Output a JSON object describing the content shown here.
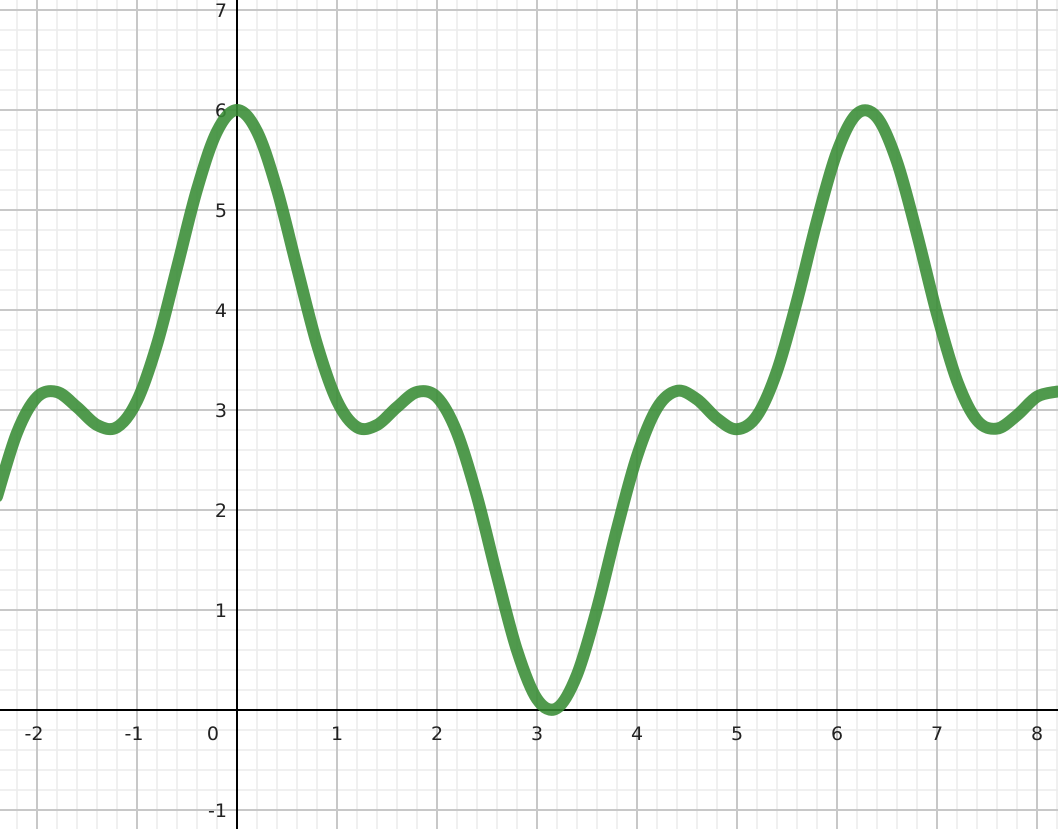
{
  "chart_data": {
    "type": "line",
    "title": "",
    "xlabel": "",
    "ylabel": "",
    "xlim": [
      -2.37,
      8.21
    ],
    "ylim": [
      -1.19,
      7.1
    ],
    "grid": true,
    "minor_grid_step": 0.2,
    "major_grid_step": 1,
    "x_ticks": [
      "-2",
      "-1",
      "0",
      "1",
      "2",
      "3",
      "4",
      "5",
      "6",
      "7",
      "8"
    ],
    "x_tick_values": [
      -2,
      -1,
      0,
      1,
      2,
      3,
      4,
      5,
      6,
      7,
      8
    ],
    "y_ticks": [
      "-1",
      "1",
      "2",
      "3",
      "4",
      "5",
      "6",
      "7"
    ],
    "y_tick_values": [
      -1,
      1,
      2,
      3,
      4,
      5,
      6,
      7
    ],
    "colors": {
      "curve": "#388c34",
      "axis": "#000000",
      "major_grid": "#c8c8c8",
      "minor_grid": "#ececec"
    },
    "series": [
      {
        "x": [
          -2.4,
          -2.2,
          -2.0,
          -1.8,
          -1.6,
          -1.4,
          -1.2,
          -1.0,
          -0.8,
          -0.6,
          -0.4,
          -0.2,
          0,
          0.2,
          0.4,
          0.6,
          0.8,
          1.0,
          1.2,
          1.4,
          1.6,
          1.8,
          2.0,
          2.2,
          2.4,
          2.6,
          2.8,
          3.0,
          3.2,
          3.4,
          3.6,
          3.8,
          4.0,
          4.2,
          4.4,
          4.6,
          4.8,
          5.0,
          5.2,
          5.4,
          5.6,
          5.8,
          6.0,
          6.2,
          6.4,
          6.6,
          6.8,
          7.0,
          7.2,
          7.4,
          7.6,
          7.8,
          8.0,
          8.2
        ],
        "y": [
          2.134,
          2.773,
          3.128,
          3.18,
          3.029,
          2.85,
          2.828,
          3.091,
          3.656,
          4.424,
          5.205,
          5.785,
          6.0,
          5.785,
          5.205,
          4.424,
          3.656,
          3.091,
          2.828,
          2.85,
          3.029,
          3.18,
          3.128,
          2.773,
          2.134,
          1.34,
          0.596,
          0.109,
          0.019,
          0.353,
          1.013,
          1.812,
          2.537,
          3.019,
          3.191,
          3.107,
          2.915,
          2.808,
          2.943,
          3.39,
          4.091,
          4.892,
          5.581,
          5.962,
          5.926,
          5.482,
          4.759,
          3.96,
          3.293,
          2.897,
          2.814,
          2.947,
          3.133,
          3.184
        ]
      }
    ]
  }
}
